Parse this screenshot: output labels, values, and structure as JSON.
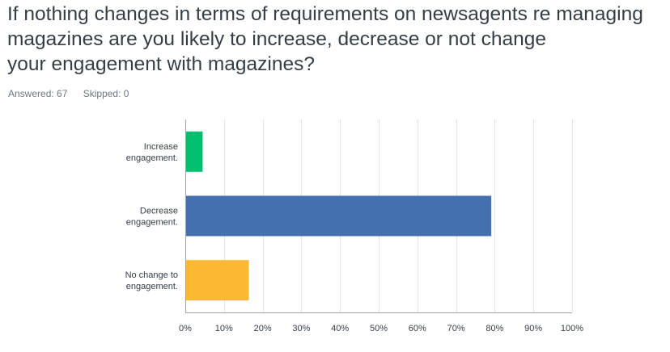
{
  "question": {
    "title_lines": [
      "If nothing changes in terms of requirements on newsagents re managing",
      "magazines are you likely to increase, decrease or not change",
      "your engagement with magazines?"
    ]
  },
  "response_meta": {
    "answered_label": "Answered: 67",
    "skipped_label": "Skipped: 0"
  },
  "chart_data": {
    "type": "bar",
    "orientation": "horizontal",
    "categories": [
      [
        "Increase",
        "engagement."
      ],
      [
        "Decrease",
        "engagement."
      ],
      [
        "No change to",
        "engagement."
      ]
    ],
    "values": [
      4.48,
      79.1,
      16.42
    ],
    "colors": [
      "#00bf6f",
      "#4471ad",
      "#fbb830"
    ],
    "xlim": [
      0,
      100
    ],
    "ticks": [
      0,
      10,
      20,
      30,
      40,
      50,
      60,
      70,
      80,
      90,
      100
    ],
    "tick_labels": [
      "0%",
      "10%",
      "20%",
      "30%",
      "40%",
      "50%",
      "60%",
      "70%",
      "80%",
      "90%",
      "100%"
    ],
    "grid": true,
    "gridline_color": "#e1e4e6",
    "axis_color": "#9da5ab",
    "title": "",
    "xlabel": "",
    "ylabel": ""
  }
}
